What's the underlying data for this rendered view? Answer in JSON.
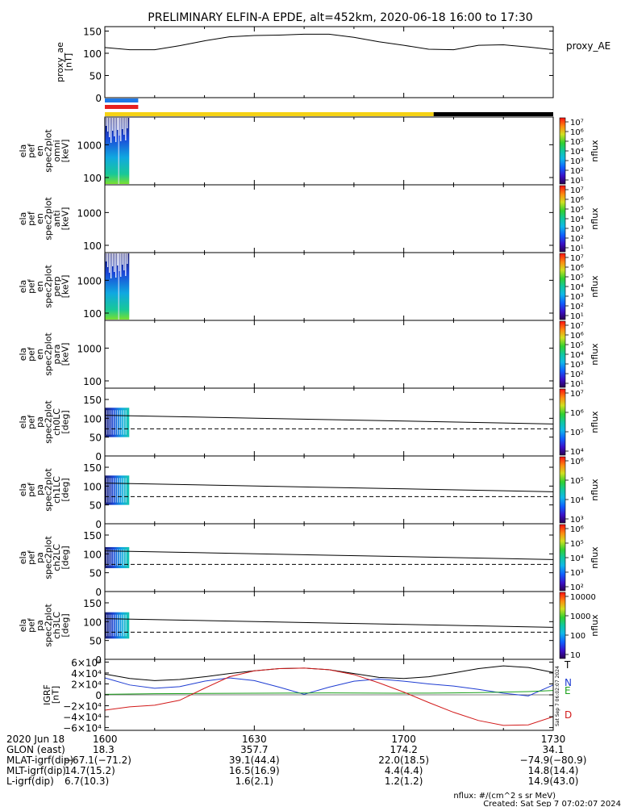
{
  "title": "PRELIMINARY ELFIN-A EPDE, alt=452km, 2020-06-18 16:00 to 17:30",
  "footer": {
    "nflux_units": "nflux: #/(cm^2 s sr MeV)",
    "created": "Created: Sat Sep  7 07:02:07 2024",
    "timestamp_vertical": "Sat Sep  7 06:02:07 2024"
  },
  "colors": {
    "proxy_bar_blue": "#1e78e6",
    "proxy_bar_red": "#e62020",
    "state_bar_yellow": "#f5d215",
    "state_bar_black": "#000000",
    "igrf_T": "#000000",
    "igrf_N": "#1e3cd2",
    "igrf_E": "#1aa01a",
    "igrf_D": "#d21a1a"
  },
  "chart_data": [
    {
      "type": "line",
      "panel": "proxy_ae",
      "ylabel": [
        "proxy_ae",
        "[nT]"
      ],
      "legend": "proxy_AE",
      "ylim": [
        0,
        160
      ],
      "yticks": [
        "150",
        "100",
        "50",
        "0"
      ],
      "x_minutes": [
        0,
        5,
        10,
        15,
        20,
        25,
        30,
        35,
        40,
        45,
        50,
        55,
        60,
        65,
        70,
        75,
        80,
        85,
        90
      ],
      "values": [
        113,
        108,
        108,
        117,
        128,
        137,
        140,
        141,
        143,
        143,
        136,
        126,
        118,
        109,
        108,
        118,
        119,
        114,
        108
      ]
    },
    {
      "type": "heatmap",
      "panel": "spec_omni",
      "ylabel": [
        "ela",
        "pef",
        "en",
        "spec2plot",
        "omni",
        "[keV]"
      ],
      "yscale": "log",
      "ylim": [
        60,
        7000
      ],
      "yticks": [
        "1000",
        "100"
      ],
      "data_extent_minutes": [
        0,
        4.9
      ],
      "colorbar": {
        "label": "nflux",
        "ticks": [
          "10⁷",
          "10⁶",
          "10⁵",
          "10⁴",
          "10³",
          "10²",
          "10¹"
        ]
      }
    },
    {
      "type": "heatmap",
      "panel": "spec_anti",
      "ylabel": [
        "ela",
        "pef",
        "en",
        "spec2plot",
        "anti",
        "[keV]"
      ],
      "yscale": "log",
      "ylim": [
        60,
        7000
      ],
      "yticks": [
        "1000",
        "100"
      ],
      "colorbar": {
        "label": "nflux",
        "ticks": [
          "10⁷",
          "10⁶",
          "10⁵",
          "10⁴",
          "10³",
          "10²",
          "10¹"
        ]
      }
    },
    {
      "type": "heatmap",
      "panel": "spec_perp",
      "ylabel": [
        "ela",
        "pef",
        "en",
        "spec2plot",
        "perp",
        "[keV]"
      ],
      "yscale": "log",
      "ylim": [
        60,
        7000
      ],
      "yticks": [
        "1000",
        "100"
      ],
      "data_extent_minutes": [
        0,
        4.9
      ],
      "colorbar": {
        "label": "nflux",
        "ticks": [
          "10⁷",
          "10⁶",
          "10⁵",
          "10⁴",
          "10³",
          "10²",
          "10¹"
        ]
      }
    },
    {
      "type": "heatmap",
      "panel": "spec_para",
      "ylabel": [
        "ela",
        "pef",
        "en",
        "spec2plot",
        "para",
        "[keV]"
      ],
      "yscale": "log",
      "ylim": [
        60,
        7000
      ],
      "yticks": [
        "1000",
        "100"
      ],
      "colorbar": {
        "label": "nflux",
        "ticks": [
          "10⁷",
          "10⁶",
          "10⁵",
          "10⁴",
          "10³",
          "10²",
          "10¹"
        ]
      }
    },
    {
      "type": "heatmap",
      "panel": "pa_ch0",
      "ylabel": [
        "ela",
        "pef",
        "pa",
        "spec2plot",
        "ch0LC",
        "[deg]"
      ],
      "ylim": [
        0,
        180
      ],
      "yticks": [
        "150",
        "100",
        "50",
        "0"
      ],
      "data_extent_minutes": [
        0,
        4.9
      ],
      "pa_range": [
        50,
        128
      ],
      "lc_solid": [
        108,
        85
      ],
      "lc_dashed": [
        72,
        72
      ],
      "colorbar": {
        "label": "nflux",
        "ticks": [
          "10⁷",
          "10⁶",
          "10⁵",
          "10⁴"
        ]
      }
    },
    {
      "type": "heatmap",
      "panel": "pa_ch1",
      "ylabel": [
        "ela",
        "pef",
        "pa",
        "spec2plot",
        "ch1LC",
        "[deg]"
      ],
      "ylim": [
        0,
        180
      ],
      "yticks": [
        "150",
        "100",
        "50",
        "0"
      ],
      "data_extent_minutes": [
        0,
        4.9
      ],
      "pa_range": [
        50,
        128
      ],
      "lc_solid": [
        108,
        85
      ],
      "lc_dashed": [
        72,
        72
      ],
      "colorbar": {
        "label": "nflux",
        "ticks": [
          "10⁶",
          "10⁵",
          "10⁴",
          "10³"
        ]
      }
    },
    {
      "type": "heatmap",
      "panel": "pa_ch2",
      "ylabel": [
        "ela",
        "pef",
        "pa",
        "spec2plot",
        "ch2LC",
        "[deg]"
      ],
      "ylim": [
        0,
        180
      ],
      "yticks": [
        "150",
        "100",
        "50",
        "0"
      ],
      "data_extent_minutes": [
        0,
        4.9
      ],
      "pa_range": [
        62,
        118
      ],
      "lc_solid": [
        108,
        85
      ],
      "lc_dashed": [
        72,
        72
      ],
      "colorbar": {
        "label": "nflux",
        "ticks": [
          "10⁶",
          "10⁵",
          "10⁴",
          "10³",
          "10²"
        ]
      }
    },
    {
      "type": "heatmap",
      "panel": "pa_ch3",
      "ylabel": [
        "ela",
        "pef",
        "pa",
        "spec2plot",
        "ch3LC",
        "[deg]"
      ],
      "ylim": [
        0,
        180
      ],
      "yticks": [
        "150",
        "100",
        "50",
        "0"
      ],
      "data_extent_minutes": [
        0,
        4.9
      ],
      "pa_range": [
        55,
        125
      ],
      "lc_solid": [
        108,
        85
      ],
      "lc_dashed": [
        72,
        72
      ],
      "colorbar": {
        "label": "nflux",
        "ticks": [
          "10000",
          "1000",
          "100",
          "10"
        ]
      }
    },
    {
      "type": "line",
      "panel": "igrf",
      "ylabel": [
        "IGRF",
        "[nT]"
      ],
      "ylim": [
        -65000,
        65000
      ],
      "yticks": [
        "6×10⁴",
        "4×10⁴",
        "2×10⁴",
        "0",
        "−2×10⁴",
        "−4×10⁴",
        "−6×10⁴"
      ],
      "x_minutes": [
        0,
        5,
        10,
        15,
        20,
        25,
        30,
        35,
        40,
        45,
        50,
        55,
        60,
        65,
        70,
        75,
        80,
        85,
        90
      ],
      "series": [
        {
          "name": "T",
          "values": [
            38000,
            30000,
            26000,
            28000,
            33000,
            39000,
            44000,
            48000,
            49000,
            46000,
            39000,
            32000,
            30000,
            33000,
            40000,
            48000,
            53000,
            50000,
            41000
          ]
        },
        {
          "name": "N",
          "values": [
            31000,
            18000,
            12000,
            15000,
            25000,
            31000,
            26000,
            14000,
            1000,
            14000,
            25000,
            29000,
            25000,
            20000,
            16000,
            10000,
            3000,
            -2000,
            18000
          ]
        },
        {
          "name": "E",
          "values": [
            1000,
            1500,
            2000,
            2200,
            2500,
            2800,
            3000,
            3200,
            3400,
            3500,
            3400,
            3200,
            3000,
            3200,
            3500,
            4000,
            5000,
            6000,
            8000
          ]
        },
        {
          "name": "D",
          "values": [
            -28000,
            -22000,
            -19000,
            -10000,
            12000,
            33000,
            44000,
            48000,
            49000,
            46000,
            37000,
            22000,
            5000,
            -14000,
            -32000,
            -47000,
            -56000,
            -55000,
            -40000
          ]
        }
      ]
    }
  ],
  "xaxis": {
    "ticks": [
      {
        "minutes": 0,
        "time": "1600",
        "glon": "18.3",
        "mlat": "−67.1(−71.2)",
        "mlt": "14.7(15.2)",
        "l": "6.7(10.3)"
      },
      {
        "minutes": 30,
        "time": "1630",
        "glon": "357.7",
        "mlat": "39.1(44.4)",
        "mlt": "16.5(16.9)",
        "l": "1.6(2.1)"
      },
      {
        "minutes": 60,
        "time": "1700",
        "glon": "174.2",
        "mlat": "22.0(18.5)",
        "mlt": "4.4(4.4)",
        "l": "1.2(1.2)"
      },
      {
        "minutes": 90,
        "time": "1730",
        "glon": "34.1",
        "mlat": "−74.9(−80.9)",
        "mlt": "14.8(14.4)",
        "l": "14.9(43.0)"
      }
    ],
    "row_labels": [
      "2020 Jun 18",
      "GLON (east)",
      "MLAT-igrf(dip)",
      "MLT-igrf(dip)",
      "L-igrf(dip)"
    ]
  },
  "state_bars": {
    "proxy": [
      {
        "color": "blue",
        "start_min": 0,
        "end_min": 6.7
      },
      {
        "color": "red",
        "start_min": 0,
        "end_min": 6.7
      }
    ],
    "science": [
      {
        "color": "yellow",
        "start_min": 0,
        "end_min": 66.0
      },
      {
        "color": "black",
        "start_min": 66.0,
        "end_min": 90
      }
    ]
  }
}
